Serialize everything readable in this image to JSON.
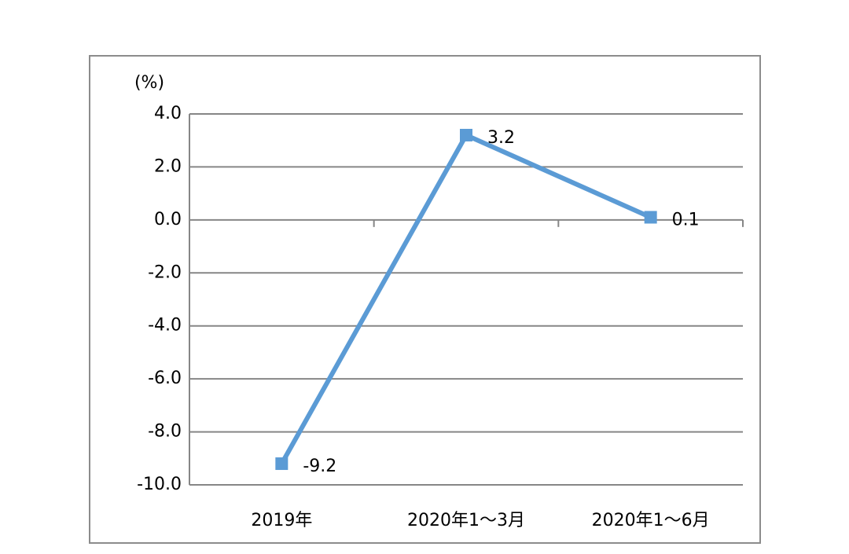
{
  "chart_data": {
    "type": "line",
    "y_label": "(%)",
    "categories": [
      "2019年",
      "2020年1～3月",
      "2020年1～6月"
    ],
    "series": [
      {
        "name": "",
        "color": "#5b9bd5",
        "values": [
          -9.2,
          3.2,
          0.1
        ]
      }
    ],
    "ylim": [
      -10,
      4
    ],
    "yticks": [
      {
        "value": -10,
        "label": "-10.0"
      },
      {
        "value": -8,
        "label": "-8.0"
      },
      {
        "value": -6,
        "label": "-6.0"
      },
      {
        "value": -4,
        "label": "-4.0"
      },
      {
        "value": -2,
        "label": "-2.0"
      },
      {
        "value": 0,
        "label": "0.0"
      },
      {
        "value": 2,
        "label": "2.0"
      },
      {
        "value": 4,
        "label": "4.0"
      }
    ],
    "grid": true
  }
}
